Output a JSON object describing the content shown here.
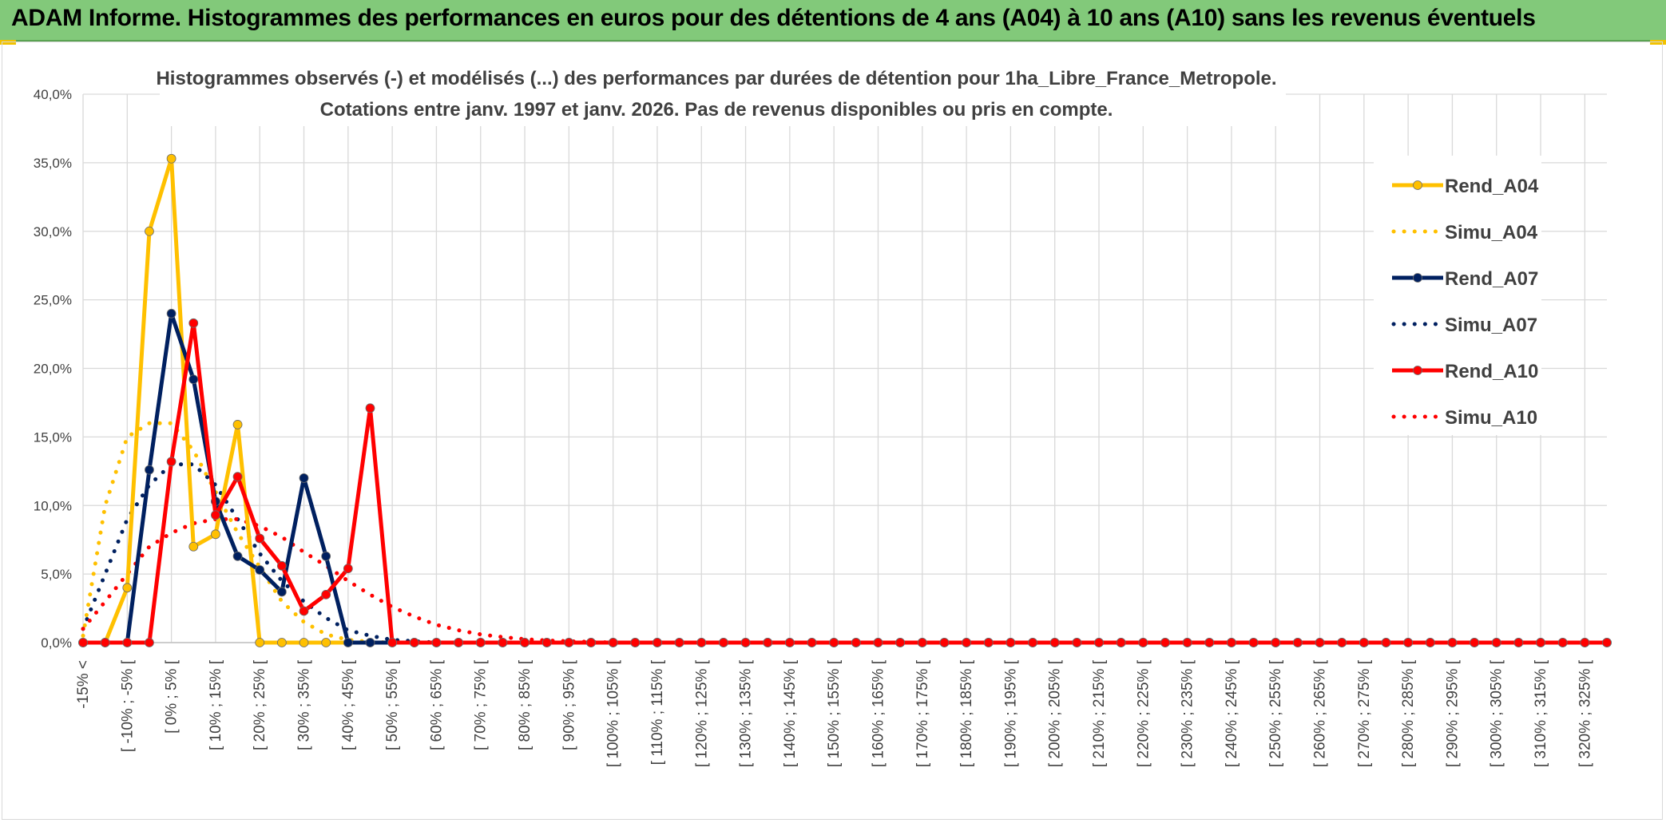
{
  "header": {
    "title": "ADAM Informe. Histogrammes des performances en euros pour des détentions de 4 ans (A04) à 10 ans (A10) sans les revenus éventuels"
  },
  "chart_data": {
    "type": "line",
    "subtitle_lines": [
      "Histogrammes observés (-) et modélisés (...) des performances par durées de détention pour 1ha_Libre_France_Metropole.",
      "Cotations entre janv. 1997 et janv. 2026. Pas de revenus disponibles ou pris en compte."
    ],
    "y_ticks": [
      "0,0%",
      "5,0%",
      "10,0%",
      "15,0%",
      "20,0%",
      "25,0%",
      "30,0%",
      "35,0%",
      "40,0%"
    ],
    "ylim": [
      0,
      40
    ],
    "grid": true,
    "legend_position": "right",
    "x_labels": [
      {
        "index": 0,
        "text": "-15% <"
      },
      {
        "index": 2,
        "text": "[ -10% ; -5% ["
      },
      {
        "index": 4,
        "text": "[ 0% ; 5% ["
      },
      {
        "index": 6,
        "text": "[ 10% ; 15% ["
      },
      {
        "index": 8,
        "text": "[ 20% ; 25% ["
      },
      {
        "index": 10,
        "text": "[ 30% ; 35% ["
      },
      {
        "index": 12,
        "text": "[ 40% ; 45% ["
      },
      {
        "index": 14,
        "text": "[ 50% ; 55% ["
      },
      {
        "index": 16,
        "text": "[ 60% ; 65% ["
      },
      {
        "index": 18,
        "text": "[ 70% ; 75% ["
      },
      {
        "index": 20,
        "text": "[ 80% ; 85% ["
      },
      {
        "index": 22,
        "text": "[ 90% ; 95% ["
      },
      {
        "index": 24,
        "text": "[ 100% ; 105% ["
      },
      {
        "index": 26,
        "text": "[ 110% ; 115% ["
      },
      {
        "index": 28,
        "text": "[ 120% ; 125% ["
      },
      {
        "index": 30,
        "text": "[ 130% ; 135% ["
      },
      {
        "index": 32,
        "text": "[ 140% ; 145% ["
      },
      {
        "index": 34,
        "text": "[ 150% ; 155% ["
      },
      {
        "index": 36,
        "text": "[ 160% ; 165% ["
      },
      {
        "index": 38,
        "text": "[ 170% ; 175% ["
      },
      {
        "index": 40,
        "text": "[ 180% ; 185% ["
      },
      {
        "index": 42,
        "text": "[ 190% ; 195% ["
      },
      {
        "index": 44,
        "text": "[ 200% ; 205% ["
      },
      {
        "index": 46,
        "text": "[ 210% ; 215% ["
      },
      {
        "index": 48,
        "text": "[ 220% ; 225% ["
      },
      {
        "index": 50,
        "text": "[ 230% ; 235% ["
      },
      {
        "index": 52,
        "text": "[ 240% ; 245% ["
      },
      {
        "index": 54,
        "text": "[ 250% ; 255% ["
      },
      {
        "index": 56,
        "text": "[ 260% ; 265% ["
      },
      {
        "index": 58,
        "text": "[ 270% ; 275% ["
      },
      {
        "index": 60,
        "text": "[ 280% ; 285% ["
      },
      {
        "index": 62,
        "text": "[ 290% ; 295% ["
      },
      {
        "index": 64,
        "text": "[ 300% ; 305% ["
      },
      {
        "index": 66,
        "text": "[ 310% ; 315% ["
      },
      {
        "index": 68,
        "text": "[ 320% ; 325% ["
      }
    ],
    "num_categories": 70,
    "series": [
      {
        "name": "Rend_A04",
        "style": "solid",
        "color": "#FFC000",
        "values": [
          0,
          0,
          4,
          30,
          35.3,
          7,
          7.9,
          15.9,
          0,
          0,
          0,
          0,
          0,
          0,
          0
        ]
      },
      {
        "name": "Simu_A04",
        "style": "dotted",
        "color": "#FFC000",
        "values": [
          0.5,
          10,
          15,
          16,
          16,
          14,
          11,
          8,
          5.5,
          3,
          1.5,
          0.6,
          0.2,
          0.05,
          0
        ]
      },
      {
        "name": "Rend_A07",
        "style": "solid",
        "color": "#002060",
        "values": [
          0,
          0,
          0,
          12.6,
          24,
          19.2,
          10.3,
          6.3,
          5.3,
          3.7,
          12,
          6.3,
          0,
          0,
          0
        ]
      },
      {
        "name": "Simu_A07",
        "style": "dotted",
        "color": "#002060",
        "values": [
          1,
          5,
          9,
          11.5,
          13,
          13,
          11.5,
          9,
          6.5,
          4.5,
          3,
          1.8,
          0.9,
          0.5,
          0.2,
          0.1,
          0
        ]
      },
      {
        "name": "Rend_A10",
        "style": "solid",
        "color": "#FF0000",
        "values": [
          0,
          0,
          0,
          0,
          13.2,
          23.3,
          9.3,
          12.1,
          7.6,
          5.6,
          2.3,
          3.5,
          5.4,
          17.1,
          0,
          0
        ]
      },
      {
        "name": "Simu_A10",
        "style": "dotted",
        "color": "#FF0000",
        "values": [
          1,
          3,
          5,
          7,
          8,
          8.7,
          9,
          9,
          8.5,
          7.7,
          6.6,
          5.6,
          4.5,
          3.5,
          2.6,
          1.9,
          1.3,
          0.9,
          0.6,
          0.4,
          0.25,
          0.15,
          0.1,
          0.05,
          0
        ]
      }
    ]
  }
}
